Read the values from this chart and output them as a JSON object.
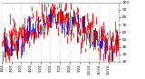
{
  "n_points": 365,
  "y_min": 20,
  "y_max": 100,
  "y_ticks": [
    20,
    30,
    40,
    50,
    60,
    70,
    80,
    90,
    100
  ],
  "blue_color": "#0000dd",
  "red_color": "#dd0000",
  "bg_color": "#ffffff",
  "grid_color": "#aaaaaa",
  "tick_label_fontsize": 3.2,
  "x_label_fontsize": 2.8,
  "bar_width": 0.0014,
  "seed": 42
}
